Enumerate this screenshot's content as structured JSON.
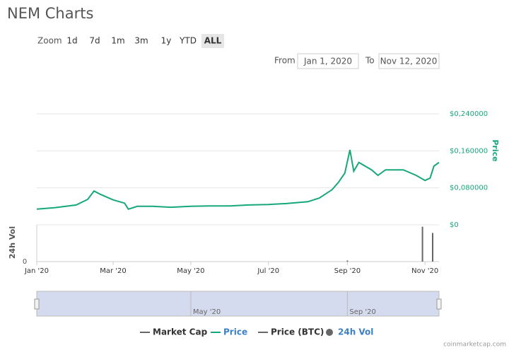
{
  "title": "NEM Charts",
  "zoom": {
    "label": "Zoom",
    "buttons": [
      "1d",
      "7d",
      "1m",
      "3m",
      "1y",
      "YTD",
      "ALL"
    ],
    "active": 6
  },
  "range": {
    "from_label": "From",
    "from": "Jan 1, 2020",
    "to_label": "To",
    "to": "Nov 12, 2020"
  },
  "credit": "coinmarketcap.com",
  "chart_data": {
    "type": "line",
    "ylabel": "Price",
    "x": [
      "2020-01-01",
      "2020-01-15",
      "2020-02-01",
      "2020-02-10",
      "2020-02-15",
      "2020-02-20",
      "2020-03-01",
      "2020-03-10",
      "2020-03-13",
      "2020-03-20",
      "2020-04-01",
      "2020-04-15",
      "2020-05-01",
      "2020-05-15",
      "2020-06-01",
      "2020-06-15",
      "2020-07-01",
      "2020-07-15",
      "2020-08-01",
      "2020-08-10",
      "2020-08-20",
      "2020-08-25",
      "2020-08-30",
      "2020-09-03",
      "2020-09-06",
      "2020-09-10",
      "2020-09-20",
      "2020-09-25",
      "2020-10-01",
      "2020-10-15",
      "2020-10-25",
      "2020-11-01",
      "2020-11-05",
      "2020-11-08",
      "2020-11-12"
    ],
    "series": [
      {
        "name": "Price",
        "color": "#16a77b",
        "legend_text_color": "#3b7fc4",
        "values": [
          0.034,
          0.037,
          0.043,
          0.055,
          0.073,
          0.066,
          0.054,
          0.047,
          0.034,
          0.04,
          0.04,
          0.038,
          0.04,
          0.041,
          0.041,
          0.043,
          0.044,
          0.046,
          0.05,
          0.058,
          0.076,
          0.092,
          0.112,
          0.162,
          0.116,
          0.135,
          0.119,
          0.107,
          0.119,
          0.119,
          0.107,
          0.096,
          0.101,
          0.127,
          0.135
        ]
      }
    ],
    "xlim": [
      "2020-01-01",
      "2020-11-12"
    ],
    "xticks": [
      {
        "value": "2020-01-01",
        "label": "Jan '20"
      },
      {
        "value": "2020-03-01",
        "label": "Mar '20"
      },
      {
        "value": "2020-05-01",
        "label": "May '20"
      },
      {
        "value": "2020-07-01",
        "label": "Jul '20"
      },
      {
        "value": "2020-09-01",
        "label": "Sep '20"
      },
      {
        "value": "2020-11-01",
        "label": "Nov '20"
      }
    ],
    "ylim": [
      0,
      0.24
    ],
    "yticks": [
      {
        "value": 0,
        "label": "$0"
      },
      {
        "value": 0.08,
        "label": "$0,080000"
      },
      {
        "value": 0.16,
        "label": "$0,160000"
      },
      {
        "value": 0.24,
        "label": "$0,240000"
      }
    ],
    "grid": true,
    "volume": {
      "name": "24h Vol",
      "color": "#666666",
      "x": [
        "2020-09-01",
        "2020-10-30",
        "2020-11-07"
      ],
      "values": [
        3,
        95,
        78
      ],
      "ylim": [
        0,
        100
      ],
      "yticks": [
        0
      ]
    },
    "other_legend": [
      {
        "name": "Market Cap",
        "color": "#666666"
      },
      {
        "name": "Price (BTC)",
        "color": "#666666"
      }
    ],
    "navigator": {
      "xticks": [
        {
          "value": "2020-05-01",
          "label": "May '20"
        },
        {
          "value": "2020-09-01",
          "label": "Sep '20"
        }
      ]
    }
  }
}
